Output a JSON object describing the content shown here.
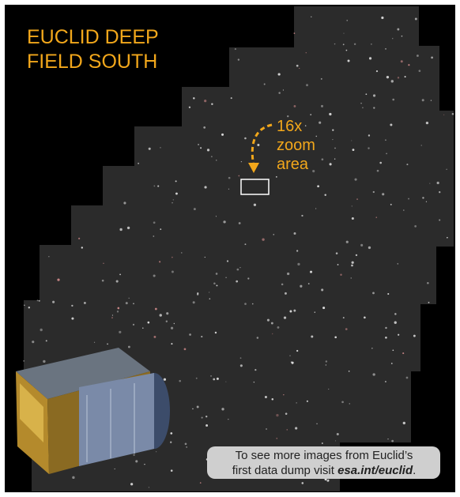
{
  "title": {
    "lines": [
      "EUCLID DEEP",
      "FIELD SOUTH"
    ]
  },
  "annotation": {
    "lines": [
      "16x",
      "zoom",
      "area"
    ]
  },
  "caption": {
    "line1": "To see more images from Euclid’s",
    "line2": "first data dump visit ",
    "link": "esa.int/euclid",
    "end": "."
  }
}
